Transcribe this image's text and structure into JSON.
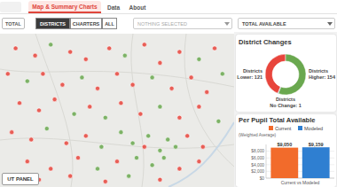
{
  "nav": {
    "tabs": [
      "Map & Summary Charts",
      "Data",
      "About"
    ],
    "active": "Map & Summary Charts"
  },
  "controls": {
    "left_button": "TOTAL",
    "entity_buttons": [
      "DISTRICTS",
      "CHARTERS",
      "ALL"
    ],
    "active_entity": "DISTRICTS",
    "selection_dropdown": "NOTHING SELECTED",
    "measure_dropdown": "TOTAL AVAILABLE"
  },
  "map": {
    "panel_button": "UT PANEL",
    "xlim": [
      -100,
      -94
    ],
    "ylim": [
      28.8,
      33
    ],
    "colors": {
      "higher": "#6aa84f",
      "lower": "#e8453c"
    },
    "points": [
      {
        "lon": -99.6,
        "lat": 32.6,
        "change": "lower"
      },
      {
        "lon": -99.1,
        "lat": 32.4,
        "change": "lower"
      },
      {
        "lon": -98.7,
        "lat": 32.7,
        "change": "higher"
      },
      {
        "lon": -98.2,
        "lat": 32.5,
        "change": "lower"
      },
      {
        "lon": -97.8,
        "lat": 32.3,
        "change": "lower"
      },
      {
        "lon": -97.2,
        "lat": 32.6,
        "change": "lower"
      },
      {
        "lon": -96.8,
        "lat": 32.4,
        "change": "higher"
      },
      {
        "lon": -96.3,
        "lat": 32.7,
        "change": "lower"
      },
      {
        "lon": -95.9,
        "lat": 32.2,
        "change": "lower"
      },
      {
        "lon": -95.4,
        "lat": 32.5,
        "change": "lower"
      },
      {
        "lon": -94.9,
        "lat": 32.3,
        "change": "higher"
      },
      {
        "lon": -94.5,
        "lat": 32.6,
        "change": "lower"
      },
      {
        "lon": -99.8,
        "lat": 31.9,
        "change": "lower"
      },
      {
        "lon": -99.3,
        "lat": 31.7,
        "change": "higher"
      },
      {
        "lon": -98.9,
        "lat": 31.9,
        "change": "lower"
      },
      {
        "lon": -98.4,
        "lat": 31.6,
        "change": "lower"
      },
      {
        "lon": -97.9,
        "lat": 31.8,
        "change": "higher"
      },
      {
        "lon": -97.5,
        "lat": 31.5,
        "change": "lower"
      },
      {
        "lon": -97.0,
        "lat": 31.9,
        "change": "lower"
      },
      {
        "lon": -96.6,
        "lat": 31.6,
        "change": "lower"
      },
      {
        "lon": -96.1,
        "lat": 31.8,
        "change": "higher"
      },
      {
        "lon": -95.6,
        "lat": 31.5,
        "change": "lower"
      },
      {
        "lon": -95.1,
        "lat": 31.8,
        "change": "lower"
      },
      {
        "lon": -94.7,
        "lat": 31.4,
        "change": "lower"
      },
      {
        "lon": -94.3,
        "lat": 31.9,
        "change": "higher"
      },
      {
        "lon": -99.5,
        "lat": 31.1,
        "change": "lower"
      },
      {
        "lon": -99.0,
        "lat": 30.9,
        "change": "lower"
      },
      {
        "lon": -98.6,
        "lat": 31.2,
        "change": "lower"
      },
      {
        "lon": -98.1,
        "lat": 30.8,
        "change": "higher"
      },
      {
        "lon": -97.7,
        "lat": 31.0,
        "change": "lower"
      },
      {
        "lon": -97.3,
        "lat": 30.7,
        "change": "higher"
      },
      {
        "lon": -96.9,
        "lat": 31.1,
        "change": "lower"
      },
      {
        "lon": -96.4,
        "lat": 30.8,
        "change": "lower"
      },
      {
        "lon": -95.9,
        "lat": 31.0,
        "change": "higher"
      },
      {
        "lon": -95.4,
        "lat": 30.7,
        "change": "lower"
      },
      {
        "lon": -94.9,
        "lat": 31.0,
        "change": "lower"
      },
      {
        "lon": -94.4,
        "lat": 30.6,
        "change": "higher"
      },
      {
        "lon": -99.7,
        "lat": 30.3,
        "change": "lower"
      },
      {
        "lon": -99.2,
        "lat": 30.1,
        "change": "lower"
      },
      {
        "lon": -98.8,
        "lat": 30.4,
        "change": "higher"
      },
      {
        "lon": -98.3,
        "lat": 30.0,
        "change": "lower"
      },
      {
        "lon": -97.8,
        "lat": 30.2,
        "change": "lower"
      },
      {
        "lon": -97.4,
        "lat": 29.9,
        "change": "higher"
      },
      {
        "lon": -96.9,
        "lat": 30.3,
        "change": "higher"
      },
      {
        "lon": -96.6,
        "lat": 30.0,
        "change": "higher"
      },
      {
        "lon": -96.3,
        "lat": 29.9,
        "change": "lower"
      },
      {
        "lon": -96.2,
        "lat": 30.2,
        "change": "higher"
      },
      {
        "lon": -95.9,
        "lat": 29.8,
        "change": "higher"
      },
      {
        "lon": -95.7,
        "lat": 30.1,
        "change": "higher"
      },
      {
        "lon": -95.5,
        "lat": 29.9,
        "change": "higher"
      },
      {
        "lon": -95.2,
        "lat": 30.2,
        "change": "lower"
      },
      {
        "lon": -94.8,
        "lat": 29.9,
        "change": "lower"
      },
      {
        "lon": -99.3,
        "lat": 29.5,
        "change": "lower"
      },
      {
        "lon": -98.7,
        "lat": 29.3,
        "change": "lower"
      },
      {
        "lon": -98.0,
        "lat": 29.6,
        "change": "lower"
      },
      {
        "lon": -97.5,
        "lat": 29.3,
        "change": "higher"
      },
      {
        "lon": -97.0,
        "lat": 29.5,
        "change": "lower"
      },
      {
        "lon": -96.5,
        "lat": 29.6,
        "change": "higher"
      },
      {
        "lon": -96.1,
        "lat": 29.4,
        "change": "higher"
      },
      {
        "lon": -95.8,
        "lat": 29.6,
        "change": "higher"
      },
      {
        "lon": -95.4,
        "lat": 29.3,
        "change": "lower"
      },
      {
        "lon": -94.9,
        "lat": 29.5,
        "change": "lower"
      },
      {
        "lon": -99.0,
        "lat": 29.0,
        "change": "lower"
      },
      {
        "lon": -98.2,
        "lat": 29.1,
        "change": "lower"
      },
      {
        "lon": -97.3,
        "lat": 28.95,
        "change": "lower"
      },
      {
        "lon": -96.7,
        "lat": 29.1,
        "change": "higher"
      },
      {
        "lon": -95.9,
        "lat": 29.0,
        "change": "lower"
      }
    ]
  },
  "chart_data": [
    {
      "type": "donut",
      "title": "District Changes",
      "values": [
        121,
        154,
        1
      ],
      "value_labels": [
        "Districts Lower: 121",
        "Districts Higher: 154",
        "Districts No Change: 1"
      ],
      "colors": [
        "#e8453c",
        "#6aa84f",
        "#34506e"
      ]
    },
    {
      "type": "bar",
      "title": "Per Pupil Total Available",
      "y_label": "(Weighted Average)",
      "categories": [
        "Current vs Modeled"
      ],
      "series": [
        {
          "name": "Current",
          "color": "#f26b2b",
          "values": [
            9050
          ],
          "value_labels": [
            "$9,050"
          ]
        },
        {
          "name": "Modeled",
          "color": "#2f7fd1",
          "values": [
            9159
          ],
          "value_labels": [
            "$9,159"
          ]
        }
      ],
      "ylim": [
        0,
        10000
      ],
      "yticks": [
        {
          "value": 0,
          "label": "$0"
        },
        {
          "value": 2000,
          "label": "$2,000"
        },
        {
          "value": 4000,
          "label": "$4,000"
        },
        {
          "value": 6000,
          "label": "$6,000"
        },
        {
          "value": 8000,
          "label": "$8,000"
        }
      ],
      "grid": true,
      "legend": "top",
      "data_labels": true
    }
  ]
}
